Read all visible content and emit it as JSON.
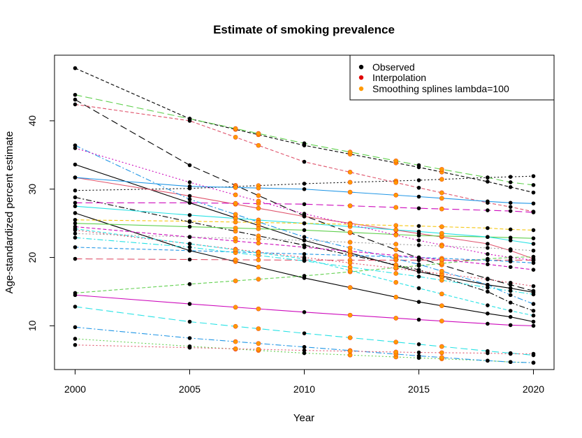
{
  "chart_data": {
    "type": "line",
    "title": "Estimate of smoking prevalence",
    "xlabel": "Year",
    "ylabel": "Age-standardized percent estimate",
    "xlim": [
      1999.1,
      2020.9
    ],
    "ylim": [
      3.6,
      49.6
    ],
    "x_ticks": [
      2000,
      2005,
      2010,
      2015,
      2020
    ],
    "y_ticks": [
      10,
      20,
      30,
      40
    ],
    "grid": false,
    "legend_position": "top-right",
    "legend": [
      {
        "label": "Observed",
        "color": "#000000"
      },
      {
        "label": "Interpolation",
        "color": "#DF0000"
      },
      {
        "label": "Smoothing splines lambda=100",
        "color": "#FF9900"
      }
    ],
    "observed_years": [
      2000,
      2005,
      2010,
      2015,
      2018,
      2019,
      2020
    ],
    "interpolated_years": [
      2007,
      2008,
      2012,
      2014,
      2016
    ],
    "series": [
      {
        "color": "#000000",
        "dash": "5,3",
        "values": [
          47.7,
          40.3,
          36.4,
          33.2,
          31.1,
          30.3,
          29.5
        ]
      },
      {
        "color": "#000000",
        "dash": "10,5",
        "values": [
          43.1,
          33.5,
          26.1,
          19.9,
          16.9,
          16.0,
          15.1
        ]
      },
      {
        "color": "#000000",
        "dash": "",
        "values": [
          33.6,
          28.0,
          22.5,
          17.9,
          16.0,
          15.5,
          14.9
        ]
      },
      {
        "color": "#000000",
        "dash": "",
        "values": [
          26.5,
          21.0,
          17.0,
          13.5,
          11.8,
          11.3,
          10.6
        ]
      },
      {
        "color": "#000000",
        "dash": "2,3",
        "values": [
          29.8,
          30.1,
          30.8,
          31.3,
          31.7,
          31.8,
          31.9
        ]
      },
      {
        "color": "#000000",
        "dash": "8,3,2,3",
        "values": [
          28.8,
          25.2,
          21.8,
          18.2,
          15.0,
          13.4,
          12.2
        ]
      },
      {
        "color": "#DF536B",
        "dash": "5,3",
        "values": [
          42.4,
          40.0,
          34.0,
          30.2,
          28.0,
          27.4,
          26.7
        ]
      },
      {
        "color": "#DF536B",
        "dash": "",
        "values": [
          31.7,
          29.0,
          26.0,
          23.5,
          22.0,
          21.0,
          19.8
        ]
      },
      {
        "color": "#DF536B",
        "dash": "10,5",
        "values": [
          19.8,
          19.7,
          19.6,
          19.6,
          19.6,
          19.6,
          19.6
        ]
      },
      {
        "color": "#DF536B",
        "dash": "2,3",
        "values": [
          24.0,
          22.0,
          20.0,
          18.0,
          16.8,
          16.3,
          15.8
        ]
      },
      {
        "color": "#61D04F",
        "dash": "10,5",
        "values": [
          43.8,
          40.3,
          36.7,
          33.5,
          31.7,
          31.0,
          30.6
        ]
      },
      {
        "color": "#61D04F",
        "dash": "5,3",
        "values": [
          14.8,
          16.1,
          17.3,
          18.8,
          19.8,
          20.0,
          20.1
        ]
      },
      {
        "color": "#61D04F",
        "dash": "",
        "values": [
          25.0,
          24.5,
          24.0,
          23.2,
          23.0,
          22.9,
          22.8
        ]
      },
      {
        "color": "#61D04F",
        "dash": "2,3",
        "values": [
          8.1,
          7.0,
          6.0,
          5.3,
          4.9,
          4.7,
          4.6
        ]
      },
      {
        "color": "#2297E6",
        "dash": "",
        "values": [
          31.7,
          30.4,
          30.0,
          28.9,
          28.2,
          28.0,
          27.9
        ]
      },
      {
        "color": "#2297E6",
        "dash": "8,3,2,3",
        "values": [
          36.4,
          28.5,
          23.0,
          19.0,
          16.0,
          14.5,
          13.2
        ]
      },
      {
        "color": "#2297E6",
        "dash": "5,3",
        "values": [
          21.5,
          21.0,
          20.5,
          20.0,
          19.6,
          19.4,
          19.2
        ]
      },
      {
        "color": "#2297E6",
        "dash": "8,3,2,3",
        "values": [
          9.8,
          8.2,
          6.9,
          5.6,
          4.9,
          4.7,
          4.6
        ]
      },
      {
        "color": "#28E2E5",
        "dash": "",
        "values": [
          27.5,
          26.2,
          25.0,
          23.8,
          23.0,
          22.5,
          22.0
        ]
      },
      {
        "color": "#28E2E5",
        "dash": "10,5",
        "values": [
          12.8,
          10.6,
          8.9,
          7.3,
          6.3,
          6.0,
          5.7
        ]
      },
      {
        "color": "#28E2E5",
        "dash": "8,3,2,3",
        "values": [
          22.9,
          21.5,
          19.5,
          17.2,
          15.6,
          15.1,
          14.6
        ]
      },
      {
        "color": "#28E2E5",
        "dash": "5,3",
        "values": [
          24.2,
          22.0,
          19.8,
          15.5,
          13.0,
          12.2,
          11.5
        ]
      },
      {
        "color": "#CD0BBC",
        "dash": "",
        "values": [
          14.5,
          13.2,
          12.0,
          10.9,
          10.3,
          10.1,
          10.0
        ]
      },
      {
        "color": "#CD0BBC",
        "dash": "10,5",
        "values": [
          28.0,
          28.0,
          27.8,
          27.2,
          26.9,
          26.8,
          26.6
        ]
      },
      {
        "color": "#CD0BBC",
        "dash": "2,3",
        "values": [
          36.0,
          31.0,
          26.4,
          22.5,
          20.5,
          20.0,
          19.6
        ]
      },
      {
        "color": "#CD0BBC",
        "dash": "5,3",
        "values": [
          24.5,
          23.0,
          21.5,
          20.0,
          19.0,
          18.6,
          18.2
        ]
      },
      {
        "color": "#F5C710",
        "dash": "5,3",
        "values": [
          25.5,
          25.3,
          25.0,
          24.6,
          24.3,
          24.1,
          24.0
        ]
      },
      {
        "color": "#9E9E9E",
        "dash": "2,3",
        "values": [
          23.5,
          23.0,
          22.5,
          21.8,
          21.4,
          21.2,
          21.0
        ]
      },
      {
        "color": "#DF536B",
        "dash": "2,3",
        "values": [
          7.2,
          6.8,
          6.4,
          6.1,
          6.0,
          5.9,
          5.9
        ]
      }
    ]
  }
}
